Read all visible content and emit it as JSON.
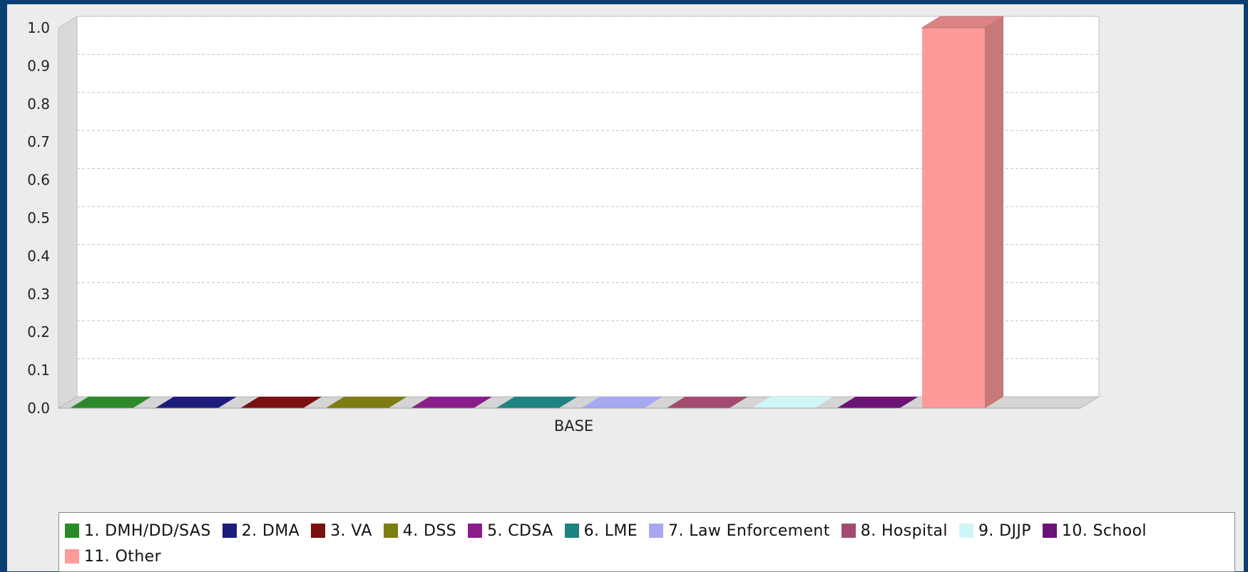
{
  "chart_data": {
    "type": "bar",
    "categories": [
      "BASE"
    ],
    "series": [
      {
        "name": "1. DMH/DD/SAS",
        "values": [
          0.0
        ],
        "color": "#2a8a2a"
      },
      {
        "name": "2. DMA",
        "values": [
          0.0
        ],
        "color": "#1c1c7a"
      },
      {
        "name": "3. VA",
        "values": [
          0.0
        ],
        "color": "#7a1010"
      },
      {
        "name": "4. DSS",
        "values": [
          0.0
        ],
        "color": "#7d7d12"
      },
      {
        "name": "5. CDSA",
        "values": [
          0.0
        ],
        "color": "#8a1d8a"
      },
      {
        "name": "6. LME",
        "values": [
          0.0
        ],
        "color": "#1d8282"
      },
      {
        "name": "7. Law Enforcement",
        "values": [
          0.0
        ],
        "color": "#a8a8f2"
      },
      {
        "name": "8. Hospital",
        "values": [
          0.0
        ],
        "color": "#a44a70"
      },
      {
        "name": "9. DJJP",
        "values": [
          0.0
        ],
        "color": "#cff6f6"
      },
      {
        "name": "10. School",
        "values": [
          0.0
        ],
        "color": "#6b1475"
      },
      {
        "name": "11. Other",
        "values": [
          1.0
        ],
        "color": "#ff9a9a"
      }
    ],
    "ylim": [
      0.0,
      1.0
    ],
    "yticks": [
      "0.0",
      "0.1",
      "0.2",
      "0.3",
      "0.4",
      "0.5",
      "0.6",
      "0.7",
      "0.8",
      "0.9",
      "1.0"
    ],
    "grid": true,
    "legend_position": "bottom",
    "style": "3d"
  }
}
